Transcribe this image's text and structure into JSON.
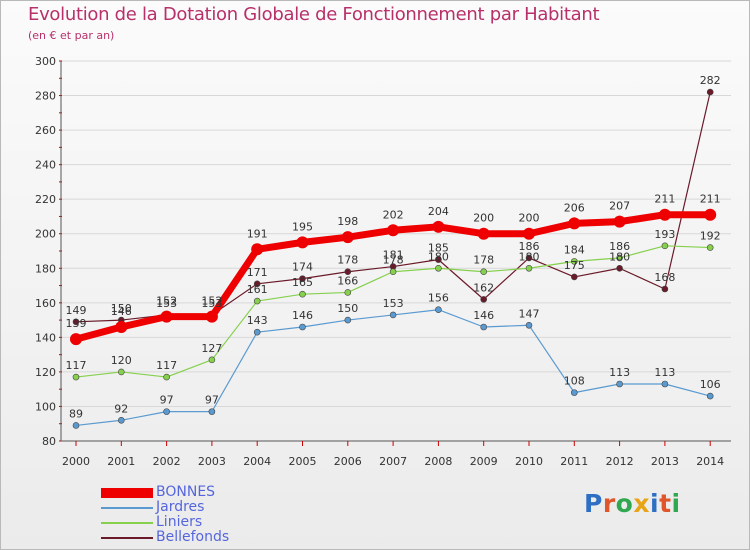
{
  "header": {
    "title": "Evolution de la Dotation Globale de Fonctionnement par Habitant",
    "subtitle": "(en € et par an)"
  },
  "brand": {
    "logo_text": "Proxiti",
    "letter_colors": [
      "#2e6fc4",
      "#e0562a",
      "#2fa84f",
      "#e8a317",
      "#2e6fc4",
      "#e0562a",
      "#2fa84f"
    ]
  },
  "chart_data": {
    "type": "line",
    "title": "Evolution de la Dotation Globale de Fonctionnement par Habitant",
    "subtitle": "(en € et par an)",
    "xlabel": "",
    "ylabel": "",
    "ylim": [
      80,
      300
    ],
    "y_ticks": [
      80,
      100,
      120,
      140,
      160,
      180,
      200,
      220,
      240,
      260,
      280,
      300
    ],
    "grid": "horizontal",
    "legend_position": "bottom-left",
    "categories": [
      "2000",
      "2001",
      "2002",
      "2003",
      "2004",
      "2005",
      "2006",
      "2007",
      "2008",
      "2009",
      "2010",
      "2011",
      "2012",
      "2013",
      "2014"
    ],
    "series": [
      {
        "name": "Bellefonds",
        "color": "#6b1a2a",
        "values": [
          149,
          150,
          153,
          153,
          171,
          174,
          178,
          181,
          185,
          162,
          186,
          175,
          180,
          168,
          282
        ],
        "labels": [
          "149",
          "150",
          "153",
          "153",
          "171",
          "174",
          "178",
          "181",
          "185",
          "162",
          "186",
          "",
          "",
          "168",
          "282"
        ]
      },
      {
        "name": "Liniers",
        "color": "#86d04e",
        "values": [
          117,
          120,
          117,
          127,
          161,
          165,
          166,
          178,
          180,
          178,
          180,
          184,
          186,
          193,
          192
        ],
        "labels": [
          "117",
          "120",
          "117",
          "127",
          "161",
          "165",
          "166",
          "178",
          "180",
          "178",
          "180",
          "184",
          "186",
          "193",
          "192"
        ]
      },
      {
        "name": "Jardres",
        "color": "#5a9ad0",
        "values": [
          89,
          92,
          97,
          97,
          143,
          146,
          150,
          153,
          156,
          146,
          147,
          108,
          113,
          113,
          106
        ],
        "labels": [
          "89",
          "92",
          "97",
          "97",
          "143",
          "146",
          "150",
          "153",
          "156",
          "146",
          "147",
          "108",
          "113",
          "113",
          "106"
        ]
      },
      {
        "name": "BONNES",
        "color": "#ee0000",
        "values": [
          139,
          146,
          152,
          152,
          191,
          195,
          198,
          202,
          204,
          200,
          200,
          206,
          207,
          211,
          211
        ],
        "labels": [
          "139",
          "146",
          "152",
          "152",
          "191",
          "195",
          "198",
          "202",
          "204",
          "200",
          "200",
          "206",
          "207",
          "211",
          "211"
        ]
      }
    ],
    "legend": [
      "BONNES",
      "Jardres",
      "Liniers",
      "Bellefonds"
    ],
    "extra_labels": [
      {
        "category": "2011",
        "value": 175,
        "text": "175"
      },
      {
        "category": "2012",
        "value": 180,
        "text": "180"
      }
    ]
  }
}
